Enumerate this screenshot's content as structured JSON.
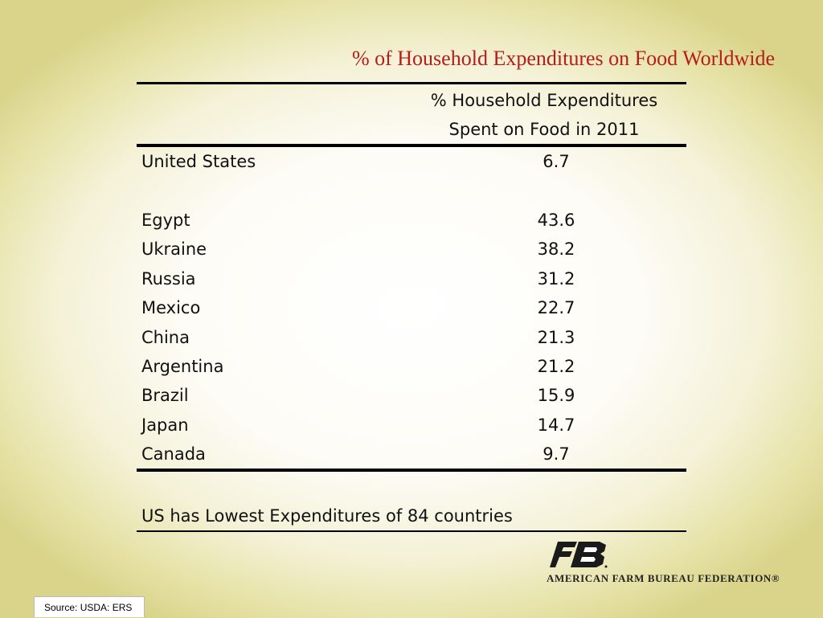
{
  "slide": {
    "title": "% of Household Expenditures on Food Worldwide"
  },
  "table": {
    "header_line1": "% Household Expenditures",
    "header_line2": "Spent on Food in 2011",
    "rows": [
      {
        "country": "United States",
        "value": "6.7"
      },
      {
        "country": "Egypt",
        "value": "43.6"
      },
      {
        "country": "Ukraine",
        "value": "38.2"
      },
      {
        "country": "Russia",
        "value": "31.2"
      },
      {
        "country": "Mexico",
        "value": "22.7"
      },
      {
        "country": "China",
        "value": "21.3"
      },
      {
        "country": "Argentina",
        "value": "21.2"
      },
      {
        "country": "Brazil",
        "value": "15.9"
      },
      {
        "country": "Japan",
        "value": "14.7"
      },
      {
        "country": "Canada",
        "value": "9.7"
      }
    ],
    "note": "US has Lowest Expenditures of 84 countries"
  },
  "logo": {
    "text": "AMERICAN FARM BUREAU FEDERATION®",
    "icon": "fb-logo-icon",
    "color": "#1a1a1a"
  },
  "footer": {
    "source": "Source: USDA: ERS"
  },
  "colors": {
    "title": "#b71c1c",
    "text": "#111111"
  }
}
